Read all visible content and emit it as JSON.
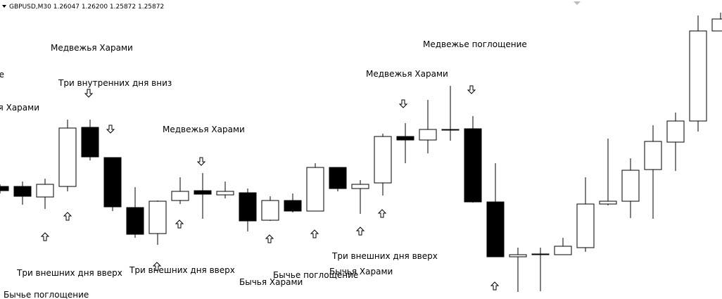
{
  "chart_data": {
    "type": "candlestick",
    "header": "GBPUSD,M30  1.26047 1.26200 1.25872 1.25872",
    "open": [
      1.2587,
      1.2587,
      1.2584,
      1.2587,
      1.26038,
      1.25952,
      1.2581,
      1.25736,
      1.2583,
      1.25858,
      1.25846,
      1.25852,
      1.25774,
      1.2583,
      1.258,
      1.25924,
      1.25864,
      1.2588,
      1.26012,
      1.26002,
      1.26032,
      1.26034,
      1.25826,
      1.2567,
      1.25678,
      1.25676,
      1.25696,
      1.2582,
      1.25828,
      1.25918,
      1.25996,
      1.26056,
      1.26312
    ],
    "high": [
      1.25876,
      1.25884,
      1.25892,
      1.2606,
      1.2606,
      1.25952,
      1.25868,
      1.2583,
      1.25896,
      1.25908,
      1.25884,
      1.25864,
      1.25842,
      1.2585,
      1.25936,
      1.25924,
      1.25888,
      1.2602,
      1.2605,
      1.26116,
      1.26156,
      1.2607,
      1.25936,
      1.25696,
      1.25696,
      1.25724,
      1.25896,
      1.26006,
      1.2595,
      1.26044,
      1.2608,
      1.26356,
      1.26364
    ],
    "low": [
      1.2585,
      1.25818,
      1.25806,
      1.25856,
      1.25944,
      1.258,
      1.25724,
      1.25704,
      1.2582,
      1.25778,
      1.25836,
      1.25742,
      1.25772,
      1.25796,
      1.258,
      1.25856,
      1.25792,
      1.25844,
      1.25936,
      1.25964,
      1.26,
      1.25824,
      1.2567,
      1.2557,
      1.25572,
      1.25676,
      1.25684,
      1.25816,
      1.2578,
      1.25778,
      1.25914,
      1.26026,
      1.26312
    ],
    "close": [
      1.25858,
      1.25842,
      1.25876,
      1.26036,
      1.25954,
      1.25812,
      1.25734,
      1.25828,
      1.25856,
      1.25848,
      1.25856,
      1.25772,
      1.2583,
      1.258,
      1.25924,
      1.25864,
      1.25876,
      1.26012,
      1.26002,
      1.26032,
      1.2603,
      1.25826,
      1.2567,
      1.25676,
      1.25676,
      1.257,
      1.2582,
      1.25828,
      1.25916,
      1.25998,
      1.26056,
      1.26312,
      1.26346
    ],
    "ylim": [
      1.2555,
      1.264
    ],
    "up_color": "#ffffff",
    "down_color": "#000000",
    "wick_color": "#000000",
    "annotations": [
      "Медвежья Харами",
      "Медвежье поглощение",
      "Медвежья Харами",
      "Три внутренних дня вниз",
      "Медвежья Харами",
      "Медвежья Харами",
      "Медвежье поглощение",
      "Три внешних дня вверх",
      "Бычье поглощение",
      "Три внешних дня вверх",
      "Бычья Харами",
      "Бычье поглощение",
      "Бычья Харами",
      "Три внешних дня вверх"
    ]
  }
}
